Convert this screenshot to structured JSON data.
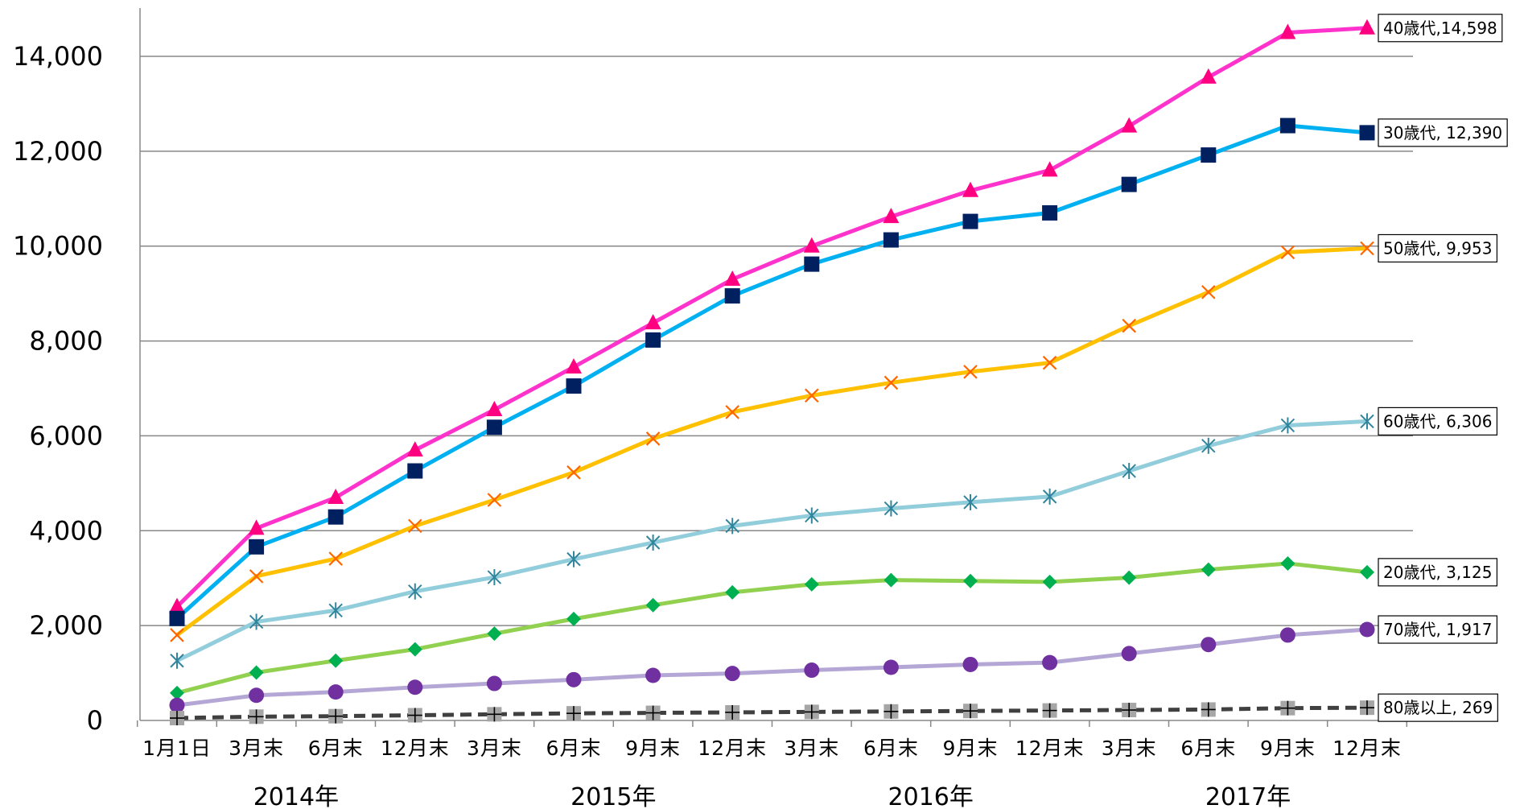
{
  "chart_data": {
    "type": "line",
    "title": "",
    "xlabel": "",
    "ylabel": "",
    "ylim": [
      0,
      15000
    ],
    "yticks": [
      0,
      2000,
      4000,
      6000,
      8000,
      10000,
      12000,
      14000
    ],
    "ytick_labels": [
      "0",
      "2,000",
      "4,000",
      "6,000",
      "8,000",
      "10,000",
      "12,000",
      "14,000"
    ],
    "categories": [
      "1月1日",
      "3月末",
      "6月末",
      "12月末",
      "3月末",
      "6月末",
      "9月末",
      "12月末",
      "3月末",
      "6月末",
      "9月末",
      "12月末",
      "3月末",
      "6月末",
      "9月末",
      "12月末"
    ],
    "year_labels": [
      {
        "text": "2014年",
        "span": [
          0,
          3
        ]
      },
      {
        "text": "2015年",
        "span": [
          4,
          7
        ]
      },
      {
        "text": "2016年",
        "span": [
          8,
          11
        ]
      },
      {
        "text": "2017年",
        "span": [
          12,
          15
        ]
      }
    ],
    "grid": true,
    "series": [
      {
        "name": "40歳代",
        "end_label": "40歳代,14,598",
        "color": "#ff33cc",
        "marker_color": "#ff0080",
        "marker": "triangle",
        "dashed": false,
        "values": [
          2400,
          4050,
          4700,
          5700,
          6550,
          7450,
          8380,
          9300,
          10000,
          10620,
          11170,
          11600,
          12530,
          13560,
          14500,
          14598
        ]
      },
      {
        "name": "30歳代",
        "end_label": "30歳代, 12,390",
        "color": "#00b0f0",
        "marker_color": "#002060",
        "marker": "square",
        "dashed": false,
        "values": [
          2150,
          3660,
          4290,
          5260,
          6180,
          7050,
          8020,
          8950,
          9620,
          10130,
          10520,
          10700,
          11300,
          11920,
          12540,
          12390
        ]
      },
      {
        "name": "50歳代",
        "end_label": "50歳代, 9,953",
        "color": "#ffc000",
        "marker_color": "#ff6600",
        "marker": "x",
        "dashed": false,
        "values": [
          1800,
          3040,
          3410,
          4100,
          4650,
          5230,
          5940,
          6500,
          6850,
          7120,
          7350,
          7540,
          8320,
          9030,
          9870,
          9953
        ]
      },
      {
        "name": "60歳代",
        "end_label": "60歳代, 6,306",
        "color": "#92cddc",
        "marker_color": "#31859c",
        "marker": "asterisk",
        "dashed": false,
        "values": [
          1260,
          2080,
          2320,
          2720,
          3020,
          3400,
          3750,
          4100,
          4320,
          4470,
          4600,
          4720,
          5260,
          5790,
          6220,
          6306
        ]
      },
      {
        "name": "20歳代",
        "end_label": "20歳代, 3,125",
        "color": "#92d050",
        "marker_color": "#00b050",
        "marker": "diamond",
        "dashed": false,
        "values": [
          580,
          1010,
          1260,
          1500,
          1830,
          2140,
          2430,
          2700,
          2870,
          2960,
          2940,
          2920,
          3010,
          3180,
          3310,
          3125
        ]
      },
      {
        "name": "70歳代",
        "end_label": "70歳代, 1,917",
        "color": "#b4a7d6",
        "marker_color": "#7030a0",
        "marker": "circle",
        "dashed": false,
        "values": [
          320,
          530,
          600,
          700,
          780,
          860,
          950,
          990,
          1060,
          1120,
          1180,
          1220,
          1410,
          1600,
          1800,
          1917
        ]
      },
      {
        "name": "80歳以上",
        "end_label": "80歳以上, 269",
        "color": "#404040",
        "marker_color": "#a6a6a6",
        "marker": "plus",
        "dashed": true,
        "values": [
          50,
          80,
          90,
          110,
          130,
          150,
          160,
          170,
          180,
          190,
          200,
          210,
          220,
          230,
          260,
          269
        ]
      }
    ]
  }
}
